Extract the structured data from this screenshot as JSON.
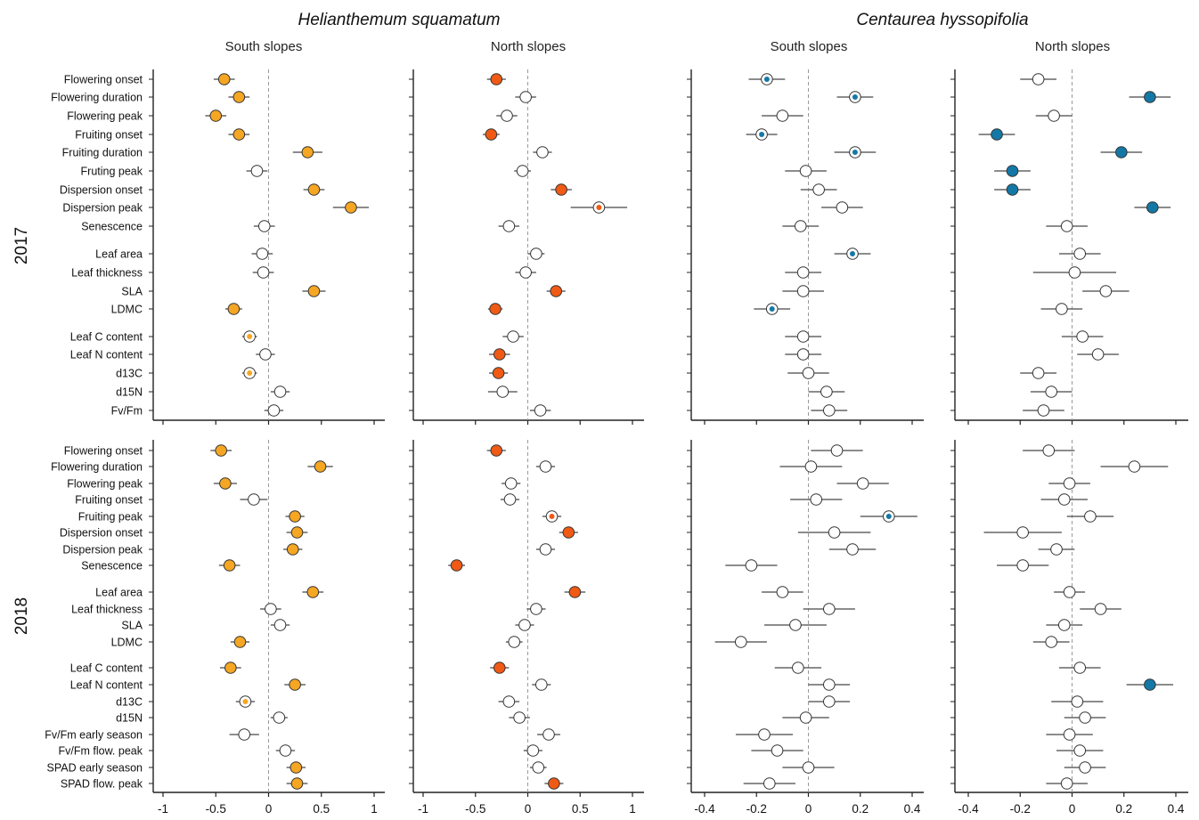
{
  "species": [
    {
      "name": "Helianthemum squamatum",
      "color": "#F5A623"
    },
    {
      "name": "Centaurea hyssopifolia",
      "color": "#1478A6"
    }
  ],
  "hs_marked_color": "#F05A14",
  "slopes": [
    "South slopes",
    "North slopes"
  ],
  "years": [
    "2017",
    "2018"
  ],
  "x_ticks": {
    "helianthemum": [
      "-1",
      "-0.5",
      "0",
      "0.5",
      "1"
    ],
    "centaurea": [
      "-0.4",
      "-0.2",
      "0",
      "0.2",
      "0.4"
    ]
  },
  "traits_2017": [
    "Flowering onset",
    "Flowering duration",
    "Flowering peak",
    "Fruiting onset",
    "Fruiting duration",
    "Fruting peak",
    "Dispersion onset",
    "Dispersion peak",
    "Senescence",
    "Leaf area",
    "Leaf thickness",
    "SLA",
    "LDMC",
    "Leaf C content",
    "Leaf N content",
    "d13C",
    "d15N",
    "Fv/Fm"
  ],
  "traits_2018": [
    "Flowering onset",
    "Flowering duration",
    "Flowering peak",
    "Fruiting onset",
    "Fruiting peak",
    "Dispersion onset",
    "Dispersion peak",
    "Senescence",
    "Leaf area",
    "Leaf thickness",
    "SLA",
    "LDMC",
    "Leaf C content",
    "Leaf N content",
    "d13C",
    "d15N",
    "Fv/Fm early season",
    "Fv/Fm flow. peak",
    "SPAD early season",
    "SPAD flow. peak"
  ],
  "chart_data": [
    {
      "type": "scatter",
      "panel": "Helianthemum squamatum / South slopes / 2017",
      "xlim": [
        -1.05,
        1.05
      ],
      "x_ticks": [
        -1,
        -0.5,
        0,
        0.5,
        1
      ],
      "categories": [
        "Flowering onset",
        "Flowering duration",
        "Flowering peak",
        "Fruiting onset",
        "Fruiting duration",
        "Fruting peak",
        "Dispersion onset",
        "Dispersion peak",
        "Senescence",
        "Leaf area",
        "Leaf thickness",
        "SLA",
        "LDMC",
        "Leaf C content",
        "Leaf N content",
        "d13C",
        "d15N",
        "Fv/Fm"
      ],
      "values": [
        -0.42,
        -0.28,
        -0.5,
        -0.28,
        0.37,
        -0.11,
        0.43,
        0.78,
        -0.04,
        -0.06,
        -0.05,
        0.43,
        -0.33,
        -0.18,
        -0.03,
        -0.18,
        0.11,
        0.05
      ],
      "ci_half": [
        0.1,
        0.1,
        0.1,
        0.1,
        0.14,
        0.1,
        0.1,
        0.17,
        0.1,
        0.1,
        0.1,
        0.11,
        0.08,
        0.07,
        0.09,
        0.07,
        0.09,
        0.09
      ],
      "status": [
        "sig",
        "sig",
        "sig",
        "sig",
        "sig",
        "ns",
        "sig",
        "sig",
        "ns",
        "ns",
        "ns",
        "sig",
        "sig",
        "marg",
        "ns",
        "marg",
        "ns",
        "ns"
      ]
    },
    {
      "type": "scatter",
      "panel": "Helianthemum squamatum / North slopes / 2017",
      "xlim": [
        -1.05,
        1.05
      ],
      "x_ticks": [
        -1,
        -0.5,
        0,
        0.5,
        1
      ],
      "categories": [
        "Flowering onset",
        "Flowering duration",
        "Flowering peak",
        "Fruiting onset",
        "Fruiting duration",
        "Fruting peak",
        "Dispersion onset",
        "Dispersion peak",
        "Senescence",
        "Leaf area",
        "Leaf thickness",
        "SLA",
        "LDMC",
        "Leaf C content",
        "Leaf N content",
        "d13C",
        "d15N",
        "Fv/Fm"
      ],
      "values": [
        -0.3,
        -0.02,
        -0.2,
        -0.35,
        0.14,
        -0.05,
        0.32,
        0.68,
        -0.18,
        0.08,
        -0.02,
        0.27,
        -0.31,
        -0.14,
        -0.27,
        -0.28,
        -0.24,
        0.12
      ],
      "ci_half": [
        0.09,
        0.1,
        0.1,
        0.08,
        0.09,
        0.08,
        0.1,
        0.27,
        0.1,
        0.08,
        0.1,
        0.09,
        0.07,
        0.1,
        0.1,
        0.09,
        0.14,
        0.1
      ],
      "status": [
        "sig",
        "ns",
        "ns",
        "sig",
        "ns",
        "ns",
        "sig",
        "marg",
        "ns",
        "ns",
        "ns",
        "sig",
        "sig",
        "ns",
        "sig",
        "sig",
        "ns",
        "ns"
      ]
    },
    {
      "type": "scatter",
      "panel": "Centaurea hyssopifolia / South slopes / 2017",
      "xlim": [
        -0.45,
        0.45
      ],
      "x_ticks": [
        -0.4,
        -0.2,
        0,
        0.2,
        0.4
      ],
      "categories": [
        "Flowering onset",
        "Flowering duration",
        "Flowering peak",
        "Fruiting onset",
        "Fruiting duration",
        "Fruting peak",
        "Dispersion onset",
        "Dispersion peak",
        "Senescence",
        "Leaf area",
        "Leaf thickness",
        "SLA",
        "LDMC",
        "Leaf C content",
        "Leaf N content",
        "d13C",
        "d15N",
        "Fv/Fm"
      ],
      "values": [
        -0.16,
        0.18,
        -0.1,
        -0.18,
        0.18,
        -0.01,
        0.04,
        0.13,
        -0.03,
        0.17,
        -0.02,
        -0.02,
        -0.14,
        -0.02,
        -0.02,
        0.0,
        0.07,
        0.08
      ],
      "ci_half": [
        0.07,
        0.07,
        0.08,
        0.06,
        0.08,
        0.08,
        0.07,
        0.08,
        0.07,
        0.07,
        0.07,
        0.08,
        0.07,
        0.07,
        0.07,
        0.08,
        0.07,
        0.07
      ],
      "status": [
        "marg",
        "marg",
        "ns",
        "marg",
        "marg",
        "ns",
        "ns",
        "ns",
        "ns",
        "marg",
        "ns",
        "ns",
        "marg",
        "ns",
        "ns",
        "ns",
        "ns",
        "ns"
      ]
    },
    {
      "type": "scatter",
      "panel": "Centaurea hyssopifolia / North slopes / 2017",
      "xlim": [
        -0.45,
        0.45
      ],
      "x_ticks": [
        -0.4,
        -0.2,
        0,
        0.2,
        0.4
      ],
      "categories": [
        "Flowering onset",
        "Flowering duration",
        "Flowering peak",
        "Fruiting onset",
        "Fruiting duration",
        "Fruting peak",
        "Dispersion onset",
        "Dispersion peak",
        "Senescence",
        "Leaf area",
        "Leaf thickness",
        "SLA",
        "LDMC",
        "Leaf C content",
        "Leaf N content",
        "d13C",
        "d15N",
        "Fv/Fm"
      ],
      "values": [
        -0.13,
        0.3,
        -0.07,
        -0.29,
        0.19,
        -0.23,
        -0.23,
        0.31,
        -0.02,
        0.03,
        0.01,
        0.13,
        -0.04,
        0.04,
        0.1,
        -0.13,
        -0.08,
        -0.11
      ],
      "ci_half": [
        0.07,
        0.08,
        0.07,
        0.07,
        0.08,
        0.07,
        0.07,
        0.07,
        0.08,
        0.08,
        0.16,
        0.09,
        0.08,
        0.08,
        0.08,
        0.07,
        0.08,
        0.08
      ],
      "status": [
        "ns",
        "sig",
        "ns",
        "sig",
        "sig",
        "sig",
        "sig",
        "sig",
        "ns",
        "ns",
        "ns",
        "ns",
        "ns",
        "ns",
        "ns",
        "ns",
        "ns",
        "ns"
      ]
    },
    {
      "type": "scatter",
      "panel": "Helianthemum squamatum / South slopes / 2018",
      "xlim": [
        -1.05,
        1.05
      ],
      "x_ticks": [
        -1,
        -0.5,
        0,
        0.5,
        1
      ],
      "categories": [
        "Flowering onset",
        "Flowering duration",
        "Flowering peak",
        "Fruiting onset",
        "Fruiting peak",
        "Dispersion onset",
        "Dispersion peak",
        "Senescence",
        "Leaf area",
        "Leaf thickness",
        "SLA",
        "LDMC",
        "Leaf C content",
        "Leaf N content",
        "d13C",
        "d15N",
        "Fv/Fm early season",
        "Fv/Fm flow. peak",
        "SPAD early season",
        "SPAD flow. peak"
      ],
      "values": [
        -0.45,
        0.49,
        -0.41,
        -0.14,
        0.25,
        0.27,
        0.23,
        -0.37,
        0.42,
        0.02,
        0.11,
        -0.27,
        -0.36,
        0.25,
        -0.22,
        0.1,
        -0.23,
        0.16,
        0.26,
        0.27
      ],
      "ci_half": [
        0.1,
        0.12,
        0.11,
        0.13,
        0.09,
        0.1,
        0.09,
        0.1,
        0.1,
        0.1,
        0.09,
        0.09,
        0.1,
        0.1,
        0.09,
        0.08,
        0.14,
        0.09,
        0.09,
        0.1
      ],
      "status": [
        "sig",
        "sig",
        "sig",
        "ns",
        "sig",
        "sig",
        "sig",
        "sig",
        "sig",
        "ns",
        "ns",
        "sig",
        "sig",
        "sig",
        "marg",
        "ns",
        "ns",
        "ns",
        "sig",
        "sig"
      ]
    },
    {
      "type": "scatter",
      "panel": "Helianthemum squamatum / North slopes / 2018",
      "xlim": [
        -1.05,
        1.05
      ],
      "x_ticks": [
        -1,
        -0.5,
        0,
        0.5,
        1
      ],
      "categories": [
        "Flowering onset",
        "Flowering duration",
        "Flowering peak",
        "Fruiting onset",
        "Fruiting peak",
        "Dispersion onset",
        "Dispersion peak",
        "Senescence",
        "Leaf area",
        "Leaf thickness",
        "SLA",
        "LDMC",
        "Leaf C content",
        "Leaf N content",
        "d13C",
        "d15N",
        "Fv/Fm early season",
        "Fv/Fm flow. peak",
        "SPAD early season",
        "SPAD flow. peak"
      ],
      "values": [
        -0.3,
        0.17,
        -0.16,
        -0.17,
        0.23,
        0.39,
        0.17,
        -0.68,
        0.45,
        0.08,
        -0.03,
        -0.13,
        -0.27,
        0.13,
        -0.18,
        -0.08,
        0.2,
        0.05,
        0.1,
        0.25
      ],
      "ci_half": [
        0.09,
        0.09,
        0.09,
        0.09,
        0.09,
        0.09,
        0.09,
        0.08,
        0.1,
        0.09,
        0.09,
        0.08,
        0.09,
        0.09,
        0.1,
        0.1,
        0.11,
        0.09,
        0.08,
        0.09
      ],
      "status": [
        "sig",
        "ns",
        "ns",
        "ns",
        "marg",
        "sig",
        "ns",
        "sig",
        "sig",
        "ns",
        "ns",
        "ns",
        "sig",
        "ns",
        "ns",
        "ns",
        "ns",
        "ns",
        "ns",
        "sig"
      ]
    },
    {
      "type": "scatter",
      "panel": "Centaurea hyssopifolia / South slopes / 2018",
      "xlim": [
        -0.45,
        0.45
      ],
      "x_ticks": [
        -0.4,
        -0.2,
        0,
        0.2,
        0.4
      ],
      "categories": [
        "Flowering onset",
        "Flowering duration",
        "Flowering peak",
        "Fruiting onset",
        "Fruiting peak",
        "Dispersion onset",
        "Dispersion peak",
        "Senescence",
        "Leaf area",
        "Leaf thickness",
        "SLA",
        "LDMC",
        "Leaf C content",
        "Leaf N content",
        "d13C",
        "d15N",
        "Fv/Fm early season",
        "Fv/Fm flow. peak",
        "SPAD early season",
        "SPAD flow. peak"
      ],
      "values": [
        0.11,
        0.01,
        0.21,
        0.03,
        0.31,
        0.1,
        0.17,
        -0.22,
        -0.1,
        0.08,
        -0.05,
        -0.26,
        -0.04,
        0.08,
        0.08,
        -0.01,
        -0.17,
        -0.12,
        0.0,
        -0.15
      ],
      "ci_half": [
        0.1,
        0.12,
        0.1,
        0.1,
        0.11,
        0.14,
        0.09,
        0.1,
        0.08,
        0.1,
        0.12,
        0.1,
        0.09,
        0.08,
        0.08,
        0.09,
        0.11,
        0.1,
        0.1,
        0.1
      ],
      "status": [
        "ns",
        "ns",
        "ns",
        "ns",
        "marg",
        "ns",
        "ns",
        "ns",
        "ns",
        "ns",
        "ns",
        "ns",
        "ns",
        "ns",
        "ns",
        "ns",
        "ns",
        "ns",
        "ns",
        "ns"
      ]
    },
    {
      "type": "scatter",
      "panel": "Centaurea hyssopifolia / North slopes / 2018",
      "xlim": [
        -0.45,
        0.45
      ],
      "x_ticks": [
        -0.4,
        -0.2,
        0,
        0.2,
        0.4
      ],
      "categories": [
        "Flowering onset",
        "Flowering duration",
        "Flowering peak",
        "Fruiting onset",
        "Fruiting peak",
        "Dispersion onset",
        "Dispersion peak",
        "Senescence",
        "Leaf area",
        "Leaf thickness",
        "SLA",
        "LDMC",
        "Leaf C content",
        "Leaf N content",
        "d13C",
        "d15N",
        "Fv/Fm early season",
        "Fv/Fm flow. peak",
        "SPAD early season",
        "SPAD flow. peak"
      ],
      "values": [
        -0.09,
        0.24,
        -0.01,
        -0.03,
        0.07,
        -0.19,
        -0.06,
        -0.19,
        -0.01,
        0.11,
        -0.03,
        -0.08,
        0.03,
        0.3,
        0.02,
        0.05,
        -0.01,
        0.03,
        0.05,
        -0.02
      ],
      "ci_half": [
        0.1,
        0.13,
        0.08,
        0.09,
        0.09,
        0.15,
        0.07,
        0.1,
        0.06,
        0.08,
        0.07,
        0.07,
        0.08,
        0.09,
        0.1,
        0.08,
        0.09,
        0.09,
        0.08,
        0.08
      ],
      "status": [
        "ns",
        "ns",
        "ns",
        "ns",
        "ns",
        "ns",
        "ns",
        "ns",
        "ns",
        "ns",
        "ns",
        "ns",
        "ns",
        "sig",
        "ns",
        "ns",
        "ns",
        "ns",
        "ns",
        "ns"
      ]
    }
  ]
}
